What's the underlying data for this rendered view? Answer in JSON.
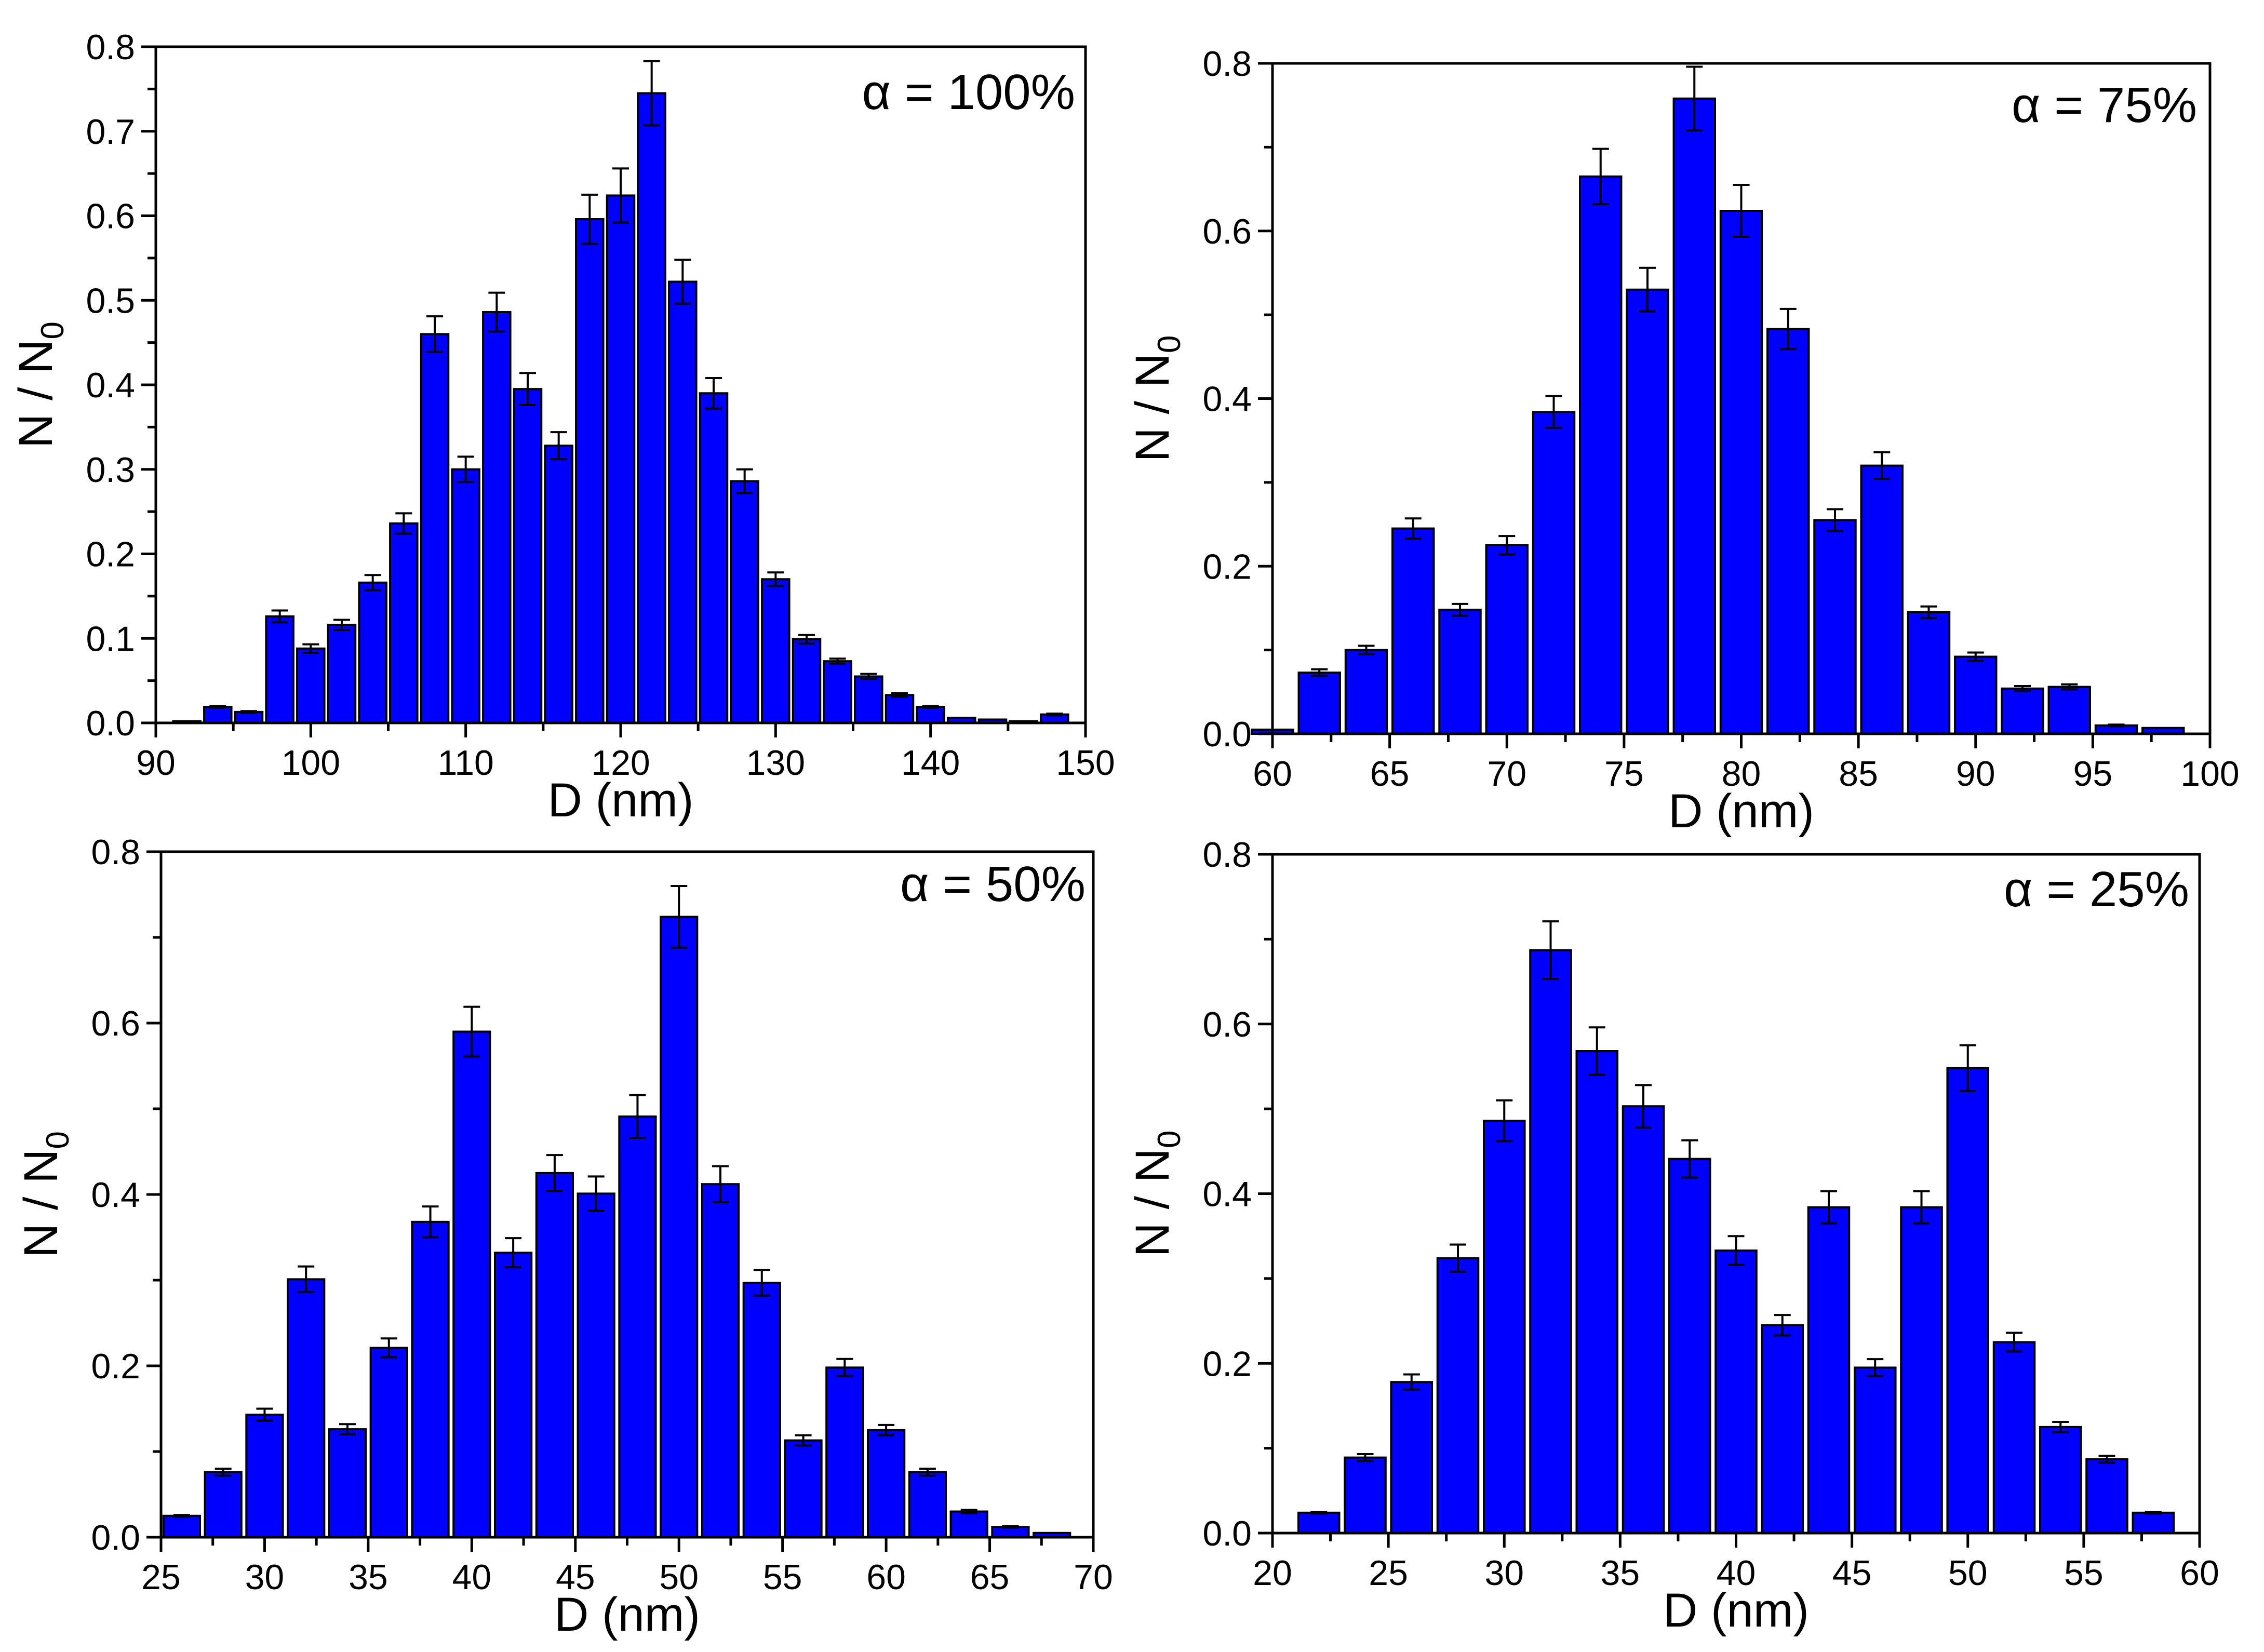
{
  "figure": {
    "bar_color": "#0000ff",
    "bar_edge": "#000000",
    "error_color": "#000000"
  },
  "chart_data": [
    {
      "type": "bar",
      "id": "panel-a",
      "title": "",
      "annotation": "α = 100%",
      "xlabel": "D (nm)",
      "ylabel": {
        "base": "N / N",
        "sub": "0"
      },
      "xlim": [
        90,
        150
      ],
      "ylim": [
        0,
        0.8
      ],
      "xticks": [
        90,
        100,
        110,
        120,
        130,
        140,
        150
      ],
      "yticks": [
        0.0,
        0.1,
        0.2,
        0.3,
        0.4,
        0.5,
        0.6,
        0.7,
        0.8
      ],
      "xtick_labels": [
        "90",
        "100",
        "110",
        "120",
        "130",
        "140",
        "150"
      ],
      "ytick_labels": [
        "0.0",
        "0.1",
        "0.2",
        "0.3",
        "0.4",
        "0.5",
        "0.6",
        "0.7",
        "0.8"
      ],
      "bin_width": 2,
      "x": [
        92,
        94,
        96,
        98,
        100,
        102,
        104,
        106,
        108,
        110,
        112,
        114,
        116,
        118,
        120,
        122,
        124,
        126,
        128,
        130,
        132,
        134,
        136,
        138,
        140,
        142,
        144,
        146,
        148
      ],
      "values": [
        0.002,
        0.019,
        0.013,
        0.126,
        0.088,
        0.116,
        0.166,
        0.236,
        0.46,
        0.3,
        0.486,
        0.395,
        0.328,
        0.596,
        0.624,
        0.745,
        0.522,
        0.39,
        0.286,
        0.17,
        0.099,
        0.073,
        0.055,
        0.033,
        0.019,
        0.006,
        0.004,
        0.002,
        0.01
      ],
      "errors": [
        0.0,
        0.001,
        0.001,
        0.007,
        0.005,
        0.006,
        0.009,
        0.012,
        0.021,
        0.015,
        0.023,
        0.019,
        0.016,
        0.029,
        0.032,
        0.038,
        0.026,
        0.018,
        0.014,
        0.008,
        0.005,
        0.003,
        0.003,
        0.002,
        0.001,
        0.0,
        0.0,
        0.0,
        0.001
      ]
    },
    {
      "type": "bar",
      "id": "panel-b",
      "title": "",
      "annotation": "α = 75%",
      "xlabel": "D (nm)",
      "ylabel": {
        "base": "N / N",
        "sub": "0"
      },
      "xlim": [
        60,
        100
      ],
      "ylim": [
        0,
        0.8
      ],
      "xticks": [
        60,
        65,
        70,
        75,
        80,
        85,
        90,
        95,
        100
      ],
      "yticks": [
        0.0,
        0.2,
        0.4,
        0.6,
        0.8
      ],
      "xtick_labels": [
        "60",
        "65",
        "70",
        "75",
        "80",
        "85",
        "90",
        "95",
        "100"
      ],
      "ytick_labels": [
        "0.0",
        "0.2",
        "0.4",
        "0.6",
        "0.8"
      ],
      "bin_width": 2,
      "x": [
        60,
        62,
        64,
        66,
        68,
        70,
        72,
        74,
        76,
        78,
        80,
        82,
        84,
        86,
        88,
        90,
        92,
        94,
        96,
        98
      ],
      "values": [
        0.005,
        0.073,
        0.1,
        0.245,
        0.148,
        0.225,
        0.384,
        0.665,
        0.53,
        0.758,
        0.624,
        0.483,
        0.255,
        0.32,
        0.145,
        0.092,
        0.054,
        0.056,
        0.01,
        0.007
      ],
      "errors": [
        0.0,
        0.004,
        0.005,
        0.012,
        0.007,
        0.011,
        0.019,
        0.033,
        0.026,
        0.038,
        0.031,
        0.024,
        0.013,
        0.016,
        0.007,
        0.005,
        0.003,
        0.003,
        0.001,
        0.0
      ]
    },
    {
      "type": "bar",
      "id": "panel-c",
      "title": "",
      "annotation": "α = 50%",
      "xlabel": "D (nm)",
      "ylabel": {
        "base": "N / N",
        "sub": "0"
      },
      "xlim": [
        25,
        70
      ],
      "ylim": [
        0,
        0.8
      ],
      "xticks": [
        25,
        30,
        35,
        40,
        45,
        50,
        55,
        60,
        65,
        70
      ],
      "yticks": [
        0.0,
        0.2,
        0.4,
        0.6,
        0.8
      ],
      "xtick_labels": [
        "25",
        "30",
        "35",
        "40",
        "45",
        "50",
        "55",
        "60",
        "65",
        "70"
      ],
      "ytick_labels": [
        "0.0",
        "0.2",
        "0.4",
        "0.6",
        "0.8"
      ],
      "bin_width": 2,
      "x": [
        26,
        28,
        30,
        32,
        34,
        36,
        38,
        40,
        42,
        44,
        46,
        48,
        50,
        52,
        54,
        56,
        58,
        60,
        62,
        64,
        66,
        68
      ],
      "values": [
        0.025,
        0.076,
        0.143,
        0.301,
        0.126,
        0.221,
        0.368,
        0.59,
        0.332,
        0.425,
        0.401,
        0.491,
        0.724,
        0.412,
        0.297,
        0.113,
        0.198,
        0.125,
        0.076,
        0.03,
        0.012,
        0.005
      ],
      "errors": [
        0.001,
        0.004,
        0.007,
        0.015,
        0.006,
        0.011,
        0.018,
        0.029,
        0.017,
        0.021,
        0.02,
        0.025,
        0.036,
        0.021,
        0.015,
        0.006,
        0.01,
        0.006,
        0.004,
        0.002,
        0.001,
        0.0
      ]
    },
    {
      "type": "bar",
      "id": "panel-d",
      "title": "",
      "annotation": "α = 25%",
      "xlabel": "D (nm)",
      "ylabel": {
        "base": "N / N",
        "sub": "0"
      },
      "xlim": [
        20,
        60
      ],
      "ylim": [
        0,
        0.8
      ],
      "xticks": [
        20,
        25,
        30,
        35,
        40,
        45,
        50,
        55,
        60
      ],
      "yticks": [
        0.0,
        0.2,
        0.4,
        0.6,
        0.8
      ],
      "xtick_labels": [
        "20",
        "25",
        "30",
        "35",
        "40",
        "45",
        "50",
        "55",
        "60"
      ],
      "ytick_labels": [
        "0.0",
        "0.2",
        "0.4",
        "0.6",
        "0.8"
      ],
      "bin_width": 2,
      "x": [
        22,
        24,
        26,
        28,
        30,
        32,
        34,
        36,
        38,
        40,
        42,
        44,
        46,
        48,
        50,
        52,
        54,
        56,
        58
      ],
      "values": [
        0.024,
        0.089,
        0.178,
        0.324,
        0.486,
        0.687,
        0.568,
        0.503,
        0.441,
        0.333,
        0.245,
        0.384,
        0.195,
        0.384,
        0.548,
        0.225,
        0.125,
        0.087,
        0.024
      ],
      "errors": [
        0.001,
        0.004,
        0.009,
        0.016,
        0.024,
        0.034,
        0.028,
        0.025,
        0.022,
        0.017,
        0.012,
        0.019,
        0.01,
        0.019,
        0.027,
        0.011,
        0.006,
        0.004,
        0.001
      ]
    }
  ]
}
